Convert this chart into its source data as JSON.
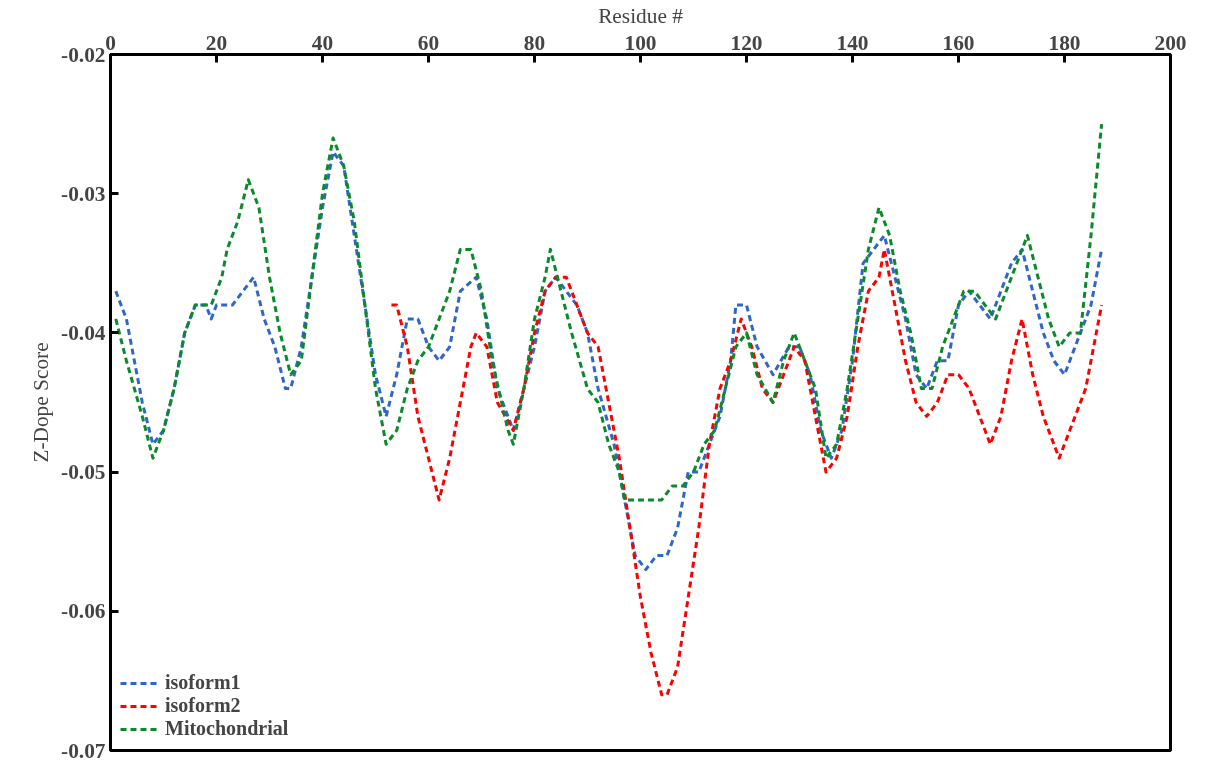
{
  "chart_data": {
    "type": "line",
    "xlabel": "Residue #",
    "ylabel": "Z-Dope Score",
    "xlim": [
      0,
      200
    ],
    "xticks": [
      0,
      20,
      40,
      60,
      80,
      100,
      120,
      140,
      160,
      180,
      200
    ],
    "ylim": [
      -0.07,
      -0.02
    ],
    "yticks": [
      -0.07,
      -0.06,
      -0.05,
      -0.04,
      -0.03,
      -0.02
    ],
    "grid": false,
    "legend": "bottom left",
    "line_style": "dashed",
    "marker": "none",
    "series": [
      {
        "name": "isoform1",
        "color": "#2f66c8",
        "x": [
          1,
          3,
          6,
          8,
          10,
          12,
          14,
          16,
          18,
          19,
          20,
          23,
          25,
          27,
          29,
          31,
          33,
          34,
          36,
          38,
          40,
          42,
          44,
          46,
          48,
          50,
          52,
          54,
          56,
          58,
          60,
          62,
          64,
          66,
          69,
          71,
          73,
          76,
          78,
          80,
          82,
          84,
          86,
          88,
          90,
          92,
          95,
          97,
          99,
          101,
          103,
          105,
          107,
          109,
          111,
          113,
          115,
          117,
          118,
          120,
          122,
          125,
          128,
          130,
          132,
          134,
          136,
          138,
          140,
          142,
          144,
          146,
          148,
          150,
          152,
          154,
          156,
          158,
          160,
          162,
          164,
          166,
          170,
          172,
          174,
          176,
          178,
          180,
          182,
          185,
          187
        ],
        "values": [
          -0.037,
          -0.039,
          -0.045,
          -0.048,
          -0.047,
          -0.044,
          -0.04,
          -0.038,
          -0.038,
          -0.039,
          -0.038,
          -0.038,
          -0.037,
          -0.036,
          -0.039,
          -0.041,
          -0.044,
          -0.044,
          -0.041,
          -0.036,
          -0.031,
          -0.027,
          -0.028,
          -0.033,
          -0.038,
          -0.043,
          -0.046,
          -0.043,
          -0.039,
          -0.039,
          -0.041,
          -0.042,
          -0.041,
          -0.037,
          -0.036,
          -0.039,
          -0.044,
          -0.047,
          -0.044,
          -0.041,
          -0.037,
          -0.036,
          -0.037,
          -0.038,
          -0.04,
          -0.044,
          -0.048,
          -0.052,
          -0.056,
          -0.057,
          -0.056,
          -0.056,
          -0.054,
          -0.05,
          -0.05,
          -0.048,
          -0.046,
          -0.042,
          -0.038,
          -0.038,
          -0.041,
          -0.043,
          -0.041,
          -0.041,
          -0.043,
          -0.047,
          -0.049,
          -0.047,
          -0.042,
          -0.035,
          -0.034,
          -0.033,
          -0.036,
          -0.039,
          -0.043,
          -0.044,
          -0.042,
          -0.042,
          -0.038,
          -0.037,
          -0.038,
          -0.039,
          -0.035,
          -0.034,
          -0.037,
          -0.04,
          -0.042,
          -0.043,
          -0.041,
          -0.038,
          -0.034
        ]
      },
      {
        "name": "isoform2",
        "color": "#ff0000",
        "x": [
          53,
          54,
          56,
          58,
          60,
          62,
          64,
          66,
          68,
          69,
          71,
          73,
          76,
          78,
          80,
          82,
          84,
          86,
          88,
          90,
          92,
          94,
          96,
          98,
          100,
          102,
          104,
          105,
          107,
          109,
          111,
          113,
          115,
          117,
          119,
          121,
          123,
          125,
          127,
          129,
          131,
          133,
          135,
          137,
          139,
          141,
          143,
          145,
          146,
          148,
          150,
          152,
          154,
          156,
          158,
          160,
          162,
          164,
          166,
          168,
          170,
          172,
          174,
          176,
          179,
          181,
          184,
          187
        ],
        "values": [
          -0.038,
          -0.038,
          -0.041,
          -0.046,
          -0.049,
          -0.052,
          -0.049,
          -0.045,
          -0.041,
          -0.04,
          -0.041,
          -0.045,
          -0.047,
          -0.044,
          -0.04,
          -0.037,
          -0.036,
          -0.036,
          -0.038,
          -0.04,
          -0.041,
          -0.045,
          -0.049,
          -0.054,
          -0.059,
          -0.063,
          -0.066,
          -0.066,
          -0.064,
          -0.059,
          -0.054,
          -0.048,
          -0.044,
          -0.042,
          -0.039,
          -0.041,
          -0.044,
          -0.045,
          -0.043,
          -0.041,
          -0.042,
          -0.046,
          -0.05,
          -0.049,
          -0.046,
          -0.041,
          -0.037,
          -0.036,
          -0.034,
          -0.038,
          -0.042,
          -0.045,
          -0.046,
          -0.045,
          -0.043,
          -0.043,
          -0.044,
          -0.046,
          -0.048,
          -0.046,
          -0.042,
          -0.039,
          -0.043,
          -0.046,
          -0.049,
          -0.047,
          -0.044,
          -0.038
        ]
      },
      {
        "name": "Mitochondrial",
        "color": "#0a8a2a",
        "x": [
          1,
          3,
          6,
          8,
          10,
          12,
          14,
          16,
          19,
          21,
          22,
          24,
          26,
          28,
          30,
          32,
          34,
          36,
          38,
          40,
          42,
          44,
          46,
          48,
          50,
          52,
          54,
          56,
          58,
          60,
          62,
          64,
          66,
          68,
          70,
          72,
          75,
          76,
          78,
          80,
          82,
          83,
          85,
          87,
          90,
          92,
          94,
          96,
          97,
          100,
          104,
          106,
          108,
          110,
          112,
          114,
          116,
          118,
          120,
          122,
          125,
          127,
          129,
          131,
          133,
          135,
          137,
          139,
          141,
          143,
          145,
          147,
          149,
          151,
          153,
          155,
          157,
          159,
          161,
          163,
          165,
          167,
          170,
          173,
          175,
          177,
          179,
          181,
          183,
          185,
          187
        ],
        "values": [
          -0.039,
          -0.042,
          -0.046,
          -0.049,
          -0.047,
          -0.044,
          -0.04,
          -0.038,
          -0.038,
          -0.036,
          -0.034,
          -0.032,
          -0.029,
          -0.031,
          -0.036,
          -0.04,
          -0.043,
          -0.042,
          -0.036,
          -0.03,
          -0.026,
          -0.028,
          -0.032,
          -0.038,
          -0.044,
          -0.048,
          -0.047,
          -0.044,
          -0.042,
          -0.041,
          -0.039,
          -0.037,
          -0.034,
          -0.034,
          -0.037,
          -0.042,
          -0.047,
          -0.048,
          -0.044,
          -0.039,
          -0.036,
          -0.034,
          -0.037,
          -0.04,
          -0.044,
          -0.045,
          -0.048,
          -0.05,
          -0.052,
          -0.052,
          -0.052,
          -0.051,
          -0.051,
          -0.05,
          -0.048,
          -0.047,
          -0.044,
          -0.041,
          -0.04,
          -0.043,
          -0.045,
          -0.042,
          -0.04,
          -0.042,
          -0.044,
          -0.049,
          -0.048,
          -0.044,
          -0.039,
          -0.034,
          -0.031,
          -0.033,
          -0.037,
          -0.04,
          -0.044,
          -0.044,
          -0.041,
          -0.039,
          -0.037,
          -0.037,
          -0.038,
          -0.039,
          -0.036,
          -0.033,
          -0.036,
          -0.039,
          -0.041,
          -0.04,
          -0.04,
          -0.033,
          -0.025
        ]
      }
    ]
  }
}
